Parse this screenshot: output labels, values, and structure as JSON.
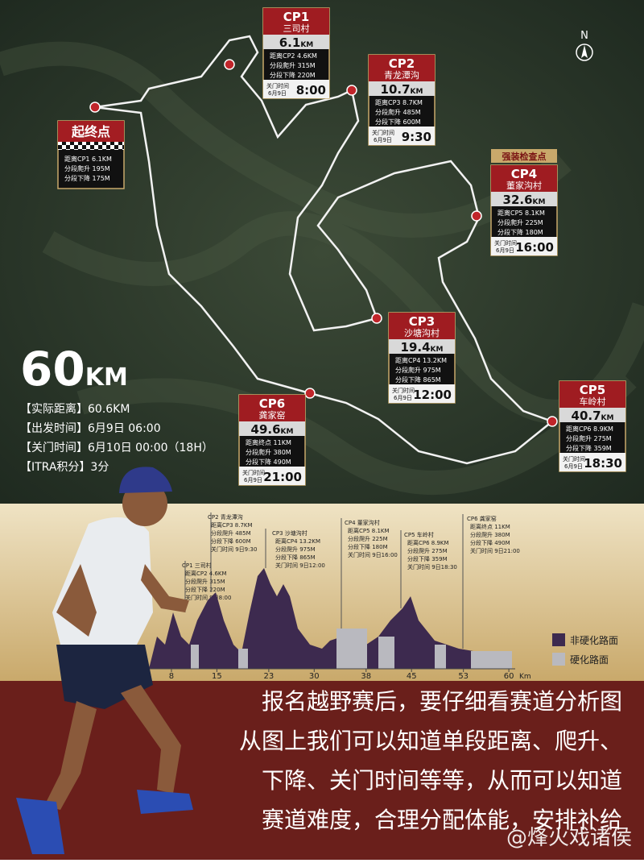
{
  "compass": "N",
  "start": {
    "title": "起终点",
    "lines": [
      "距离CP1 6.1KM",
      "分段爬升 195M",
      "分段下降 175M"
    ]
  },
  "checkpoints": [
    {
      "id": "CP1",
      "name": "三司村",
      "distance": "6.1",
      "unit": "KM",
      "lines": [
        "距离CP2 4.6KM",
        "分段爬升 315M",
        "分段下降 220M"
      ],
      "cutoff_label": "关门时间",
      "cutoff_date": "6月9日",
      "cutoff_time": "8:00"
    },
    {
      "id": "CP2",
      "name": "青龙潭沟",
      "distance": "10.7",
      "unit": "KM",
      "lines": [
        "距离CP3 8.7KM",
        "分段爬升 485M",
        "分段下降 600M"
      ],
      "cutoff_label": "关门时间",
      "cutoff_date": "6月9日",
      "cutoff_time": "9:30"
    },
    {
      "id": "CP3",
      "name": "沙塘沟村",
      "distance": "19.4",
      "unit": "KM",
      "lines": [
        "距离CP4 13.2KM",
        "分段爬升 975M",
        "分段下降 865M"
      ],
      "cutoff_label": "关门时间",
      "cutoff_date": "6月9日",
      "cutoff_time": "12:00"
    },
    {
      "id": "CP4",
      "tag": "强装检查点",
      "name": "董家沟村",
      "distance": "32.6",
      "unit": "KM",
      "lines": [
        "距离CP5 8.1KM",
        "分段爬升 225M",
        "分段下降 180M"
      ],
      "cutoff_label": "关门时间",
      "cutoff_date": "6月9日",
      "cutoff_time": "16:00"
    },
    {
      "id": "CP5",
      "name": "车岭村",
      "distance": "40.7",
      "unit": "KM",
      "lines": [
        "距离CP6 8.9KM",
        "分段爬升 275M",
        "分段下降 359M"
      ],
      "cutoff_label": "关门时间",
      "cutoff_date": "6月9日",
      "cutoff_time": "18:30"
    },
    {
      "id": "CP6",
      "name": "龚家窑",
      "distance": "49.6",
      "unit": "KM",
      "lines": [
        "距离终点 11KM",
        "分段爬升 380M",
        "分段下降 490M"
      ],
      "cutoff_label": "关门时间",
      "cutoff_date": "6月9日",
      "cutoff_time": "21:00"
    }
  ],
  "summary": {
    "distance": "60",
    "unit": "KM",
    "lines": [
      "【实际距离】60.6KM",
      "【出发时间】6月9日 06:00",
      "【关门时间】6月10日 00:00（18H）",
      "【ITRA积分】3分"
    ]
  },
  "profile": {
    "notes": [
      {
        "title": "CP1 三司村",
        "lines": [
          "距离CP2 4.6KM",
          "分段爬升 315M",
          "分段下降 220M",
          "关门时间 9日8:00"
        ]
      },
      {
        "title": "CP2 青龙潭沟",
        "lines": [
          "距离CP3 8.7KM",
          "分段爬升 485M",
          "分段下降 600M",
          "关门时间 9日9:30"
        ]
      },
      {
        "title": "CP3 沙塘沟村",
        "lines": [
          "距离CP4 13.2KM",
          "分段爬升 975M",
          "分段下降 865M",
          "关门时间 9日12:00"
        ]
      },
      {
        "title": "CP4 董家沟村",
        "lines": [
          "距离CP5 8.1KM",
          "分段爬升 225M",
          "分段下降 180M",
          "关门时间 9日16:00"
        ]
      },
      {
        "title": "CP5 车岭村",
        "lines": [
          "距离CP6 8.9KM",
          "分段爬升 275M",
          "分段下降 359M",
          "关门时间 9日18:30"
        ]
      },
      {
        "title": "CP6 龚家窑",
        "lines": [
          "距离终点 11KM",
          "分段爬升 380M",
          "分段下降 490M",
          "关门时间 9日21:00"
        ]
      }
    ],
    "xticks": [
      8,
      15,
      23,
      30,
      38,
      45,
      53,
      60
    ],
    "x_unit": "Km",
    "legend": [
      "非硬化路面",
      "硬化路面"
    ]
  },
  "caption": [
    "报名越野赛后，要仔细看赛道分析图",
    "从图上我们可以知道单段距离、爬升、",
    "下降、关门时间等等，从而可以知道",
    "赛道难度，合理分配体能，安排补给"
  ],
  "watermark": "@烽火戏诸侯"
}
